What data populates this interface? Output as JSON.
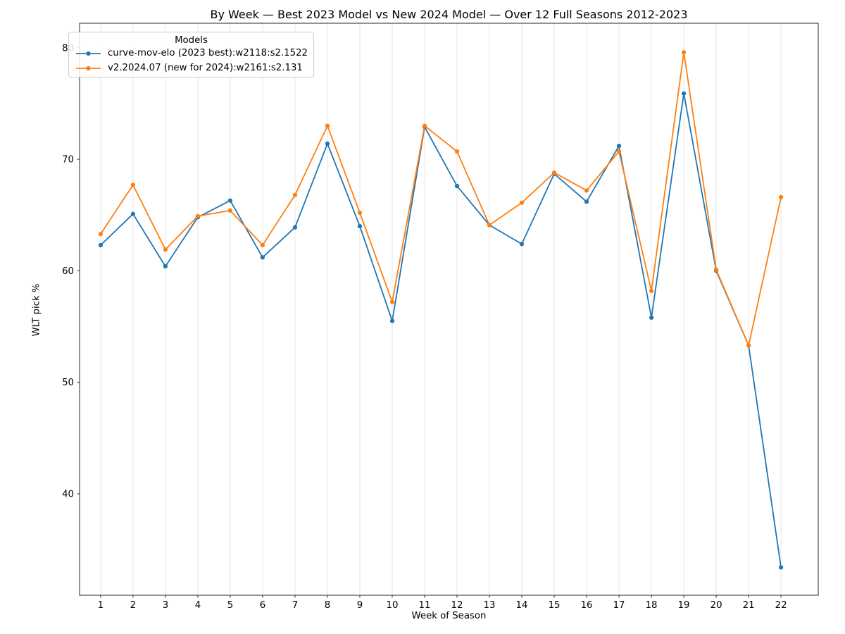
{
  "chart_data": {
    "type": "line",
    "title": "By Week — Best 2023 Model vs New 2024 Model — Over 12 Full Seasons 2012-2023",
    "xlabel": "Week of Season",
    "ylabel": "WLT pick %",
    "legend_title": "Models",
    "legend_position": "upper left",
    "grid": "vertical-only",
    "grid_color": "#e6e6e6",
    "background_color": "#ffffff",
    "x": [
      1,
      2,
      3,
      4,
      5,
      6,
      7,
      8,
      9,
      10,
      11,
      12,
      13,
      14,
      15,
      16,
      17,
      18,
      19,
      20,
      21,
      22
    ],
    "xticks": [
      "1",
      "2",
      "3",
      "4",
      "5",
      "6",
      "7",
      "8",
      "9",
      "10",
      "11",
      "12",
      "13",
      "14",
      "15",
      "16",
      "17",
      "18",
      "19",
      "20",
      "21",
      "22"
    ],
    "yticks": [
      "40",
      "50",
      "60",
      "70",
      "80"
    ],
    "ytick_values": [
      40,
      50,
      60,
      70,
      80
    ],
    "xlim": [
      0.35,
      23.15
    ],
    "ylim": [
      30.9,
      82.2
    ],
    "series": [
      {
        "name": "curve-mov-elo (2023 best):w2118:s2.1522",
        "color": "#1f77b4",
        "marker": "dot",
        "values": [
          62.3,
          65.1,
          60.4,
          64.8,
          66.3,
          61.2,
          63.9,
          71.4,
          64.0,
          55.5,
          72.9,
          67.6,
          64.1,
          62.4,
          68.7,
          66.2,
          71.2,
          55.8,
          75.9,
          60.0,
          53.3,
          33.4
        ]
      },
      {
        "name": "v2.2024.07 (new for 2024):w2161:s2.131",
        "color": "#ff7f0e",
        "marker": "dot",
        "values": [
          63.3,
          67.7,
          61.9,
          64.9,
          65.4,
          62.3,
          66.8,
          73.0,
          65.2,
          57.2,
          73.0,
          70.7,
          64.1,
          66.1,
          68.8,
          67.2,
          70.7,
          58.2,
          79.6,
          60.1,
          53.3,
          66.6
        ]
      }
    ]
  }
}
